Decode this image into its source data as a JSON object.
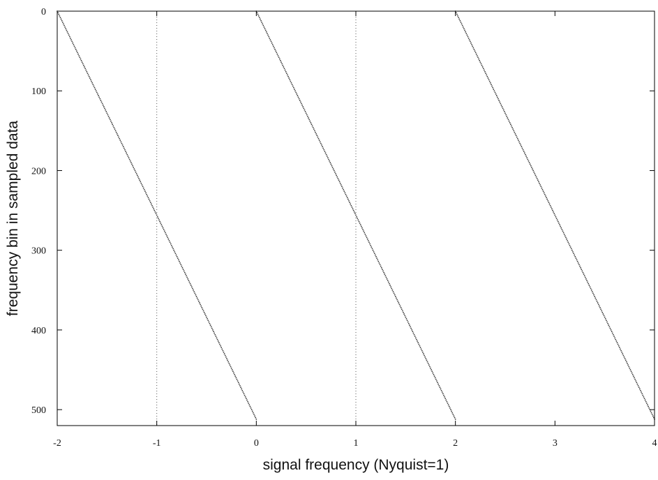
{
  "chart_data": {
    "type": "scatter",
    "title": "",
    "xlabel": "signal frequency (Nyquist=1)",
    "ylabel": "frequency bin in sampled data",
    "xlim": [
      -2,
      4
    ],
    "ylim": [
      0,
      520
    ],
    "y_inverted": true,
    "x_ticks": [
      "-2",
      "-1",
      "0",
      "1",
      "2",
      "3",
      "4"
    ],
    "y_ticks": [
      "0",
      "100",
      "200",
      "300",
      "400",
      "500"
    ],
    "reference_lines": {
      "x": [
        -1,
        1
      ],
      "style": "dotted"
    },
    "grid": false,
    "legend": "none",
    "marker_color": "#333333",
    "series": [
      {
        "x": [
          -2,
          0
        ],
        "y": [
          0,
          512
        ]
      },
      {
        "x": [
          0,
          2
        ],
        "y": [
          0,
          512
        ]
      },
      {
        "x": [
          2,
          4
        ],
        "y": [
          0,
          512
        ]
      }
    ]
  }
}
